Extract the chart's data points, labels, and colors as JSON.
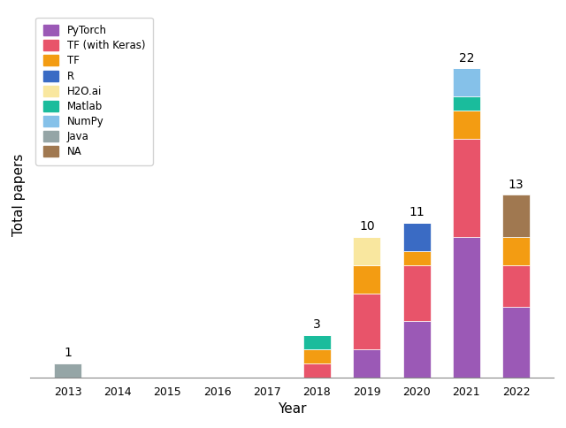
{
  "years": [
    2013,
    2014,
    2015,
    2016,
    2017,
    2018,
    2019,
    2020,
    2021,
    2022
  ],
  "stacks": {
    "PyTorch": [
      0,
      0,
      0,
      0,
      0,
      0,
      2,
      4,
      10,
      5
    ],
    "TF (with Keras)": [
      0,
      0,
      0,
      0,
      0,
      1,
      4,
      4,
      7,
      3
    ],
    "TF": [
      0,
      0,
      0,
      0,
      0,
      1,
      2,
      1,
      2,
      2
    ],
    "R": [
      0,
      0,
      0,
      0,
      0,
      0,
      0,
      2,
      0,
      0
    ],
    "H2O.ai": [
      0,
      0,
      0,
      0,
      0,
      0,
      2,
      0,
      0,
      0
    ],
    "Matlab": [
      0,
      0,
      0,
      0,
      0,
      1,
      0,
      0,
      1,
      0
    ],
    "NumPy": [
      0,
      0,
      0,
      0,
      0,
      0,
      0,
      0,
      2,
      0
    ],
    "Java": [
      1,
      0,
      0,
      0,
      0,
      0,
      0,
      0,
      0,
      0
    ],
    "NA": [
      0,
      0,
      0,
      0,
      0,
      0,
      0,
      0,
      0,
      3
    ]
  },
  "stack_order": [
    "PyTorch",
    "TF (with Keras)",
    "TF",
    "R",
    "H2O.ai",
    "Matlab",
    "NumPy",
    "Java",
    "NA"
  ],
  "colors": {
    "PyTorch": "#9B59B6",
    "TF (with Keras)": "#E8546A",
    "TF": "#F39C12",
    "R": "#3A6BC4",
    "H2O.ai": "#F9E79F",
    "Matlab": "#1ABC9C",
    "NumPy": "#85C1E9",
    "Java": "#95A5A6",
    "NA": "#A07850"
  },
  "annotate": {
    "2013": 1,
    "2018": 3,
    "2019": 10,
    "2020": 11,
    "2021": 22,
    "2022": 13
  },
  "xlabel": "Year",
  "ylabel": "Total papers",
  "legend_order": [
    "PyTorch",
    "TF (with Keras)",
    "TF",
    "R",
    "H2O.ai",
    "Matlab",
    "NumPy",
    "Java",
    "NA"
  ],
  "ylim": [
    0,
    26
  ],
  "bar_width": 0.55
}
